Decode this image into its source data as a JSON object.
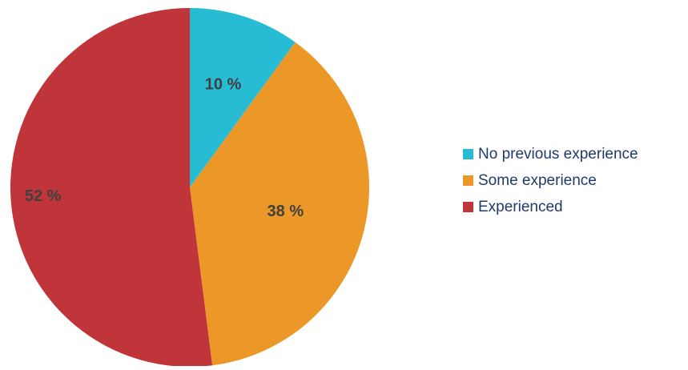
{
  "chart_data": {
    "type": "pie",
    "title": "",
    "slices": [
      {
        "label": "No previous experience",
        "value": 10,
        "display": "10 %",
        "color": "#27bcd3"
      },
      {
        "label": "Some experience",
        "value": 38,
        "display": "38 %",
        "color": "#ec9828"
      },
      {
        "label": "Experienced",
        "value": 52,
        "display": "52 %",
        "color": "#bf353a"
      }
    ],
    "start_angle_deg": 0,
    "direction": "clockwise",
    "legend_position": "right"
  }
}
